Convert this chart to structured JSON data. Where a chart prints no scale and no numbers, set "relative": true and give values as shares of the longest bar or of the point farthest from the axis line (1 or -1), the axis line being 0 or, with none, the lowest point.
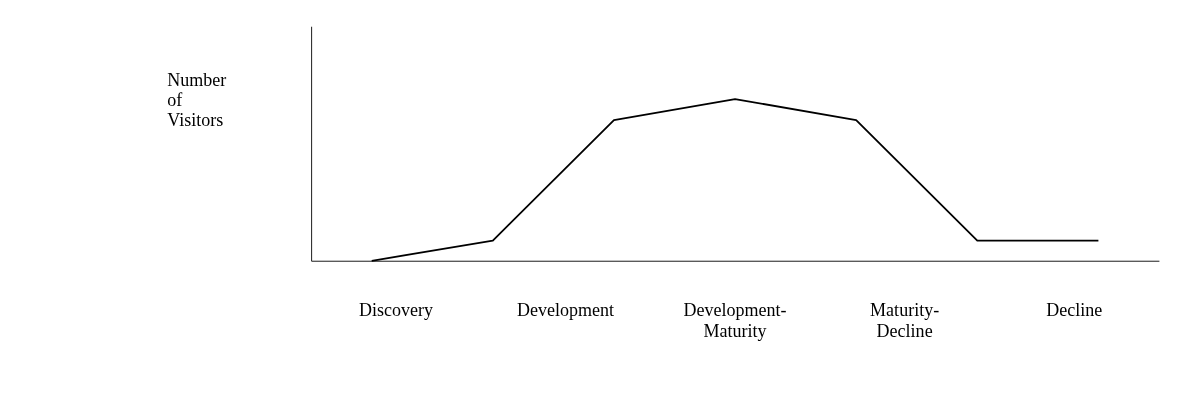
{
  "chart_data": {
    "type": "line",
    "relative": true,
    "ylabel": "Number of Visitors",
    "categories": [
      null,
      null,
      null,
      null,
      null,
      null,
      null
    ],
    "series": [
      {
        "color": "#000000",
        "values": [
          0,
          0.125,
          0.87,
          1,
          0.87,
          0.125,
          0.125
        ]
      }
    ],
    "annotations": [
      "Discovery",
      "Development",
      "Development-Maturity",
      "Maturity-Decline",
      "Decline"
    ],
    "grid": false,
    "marker": "none",
    "line_style": "solid"
  }
}
